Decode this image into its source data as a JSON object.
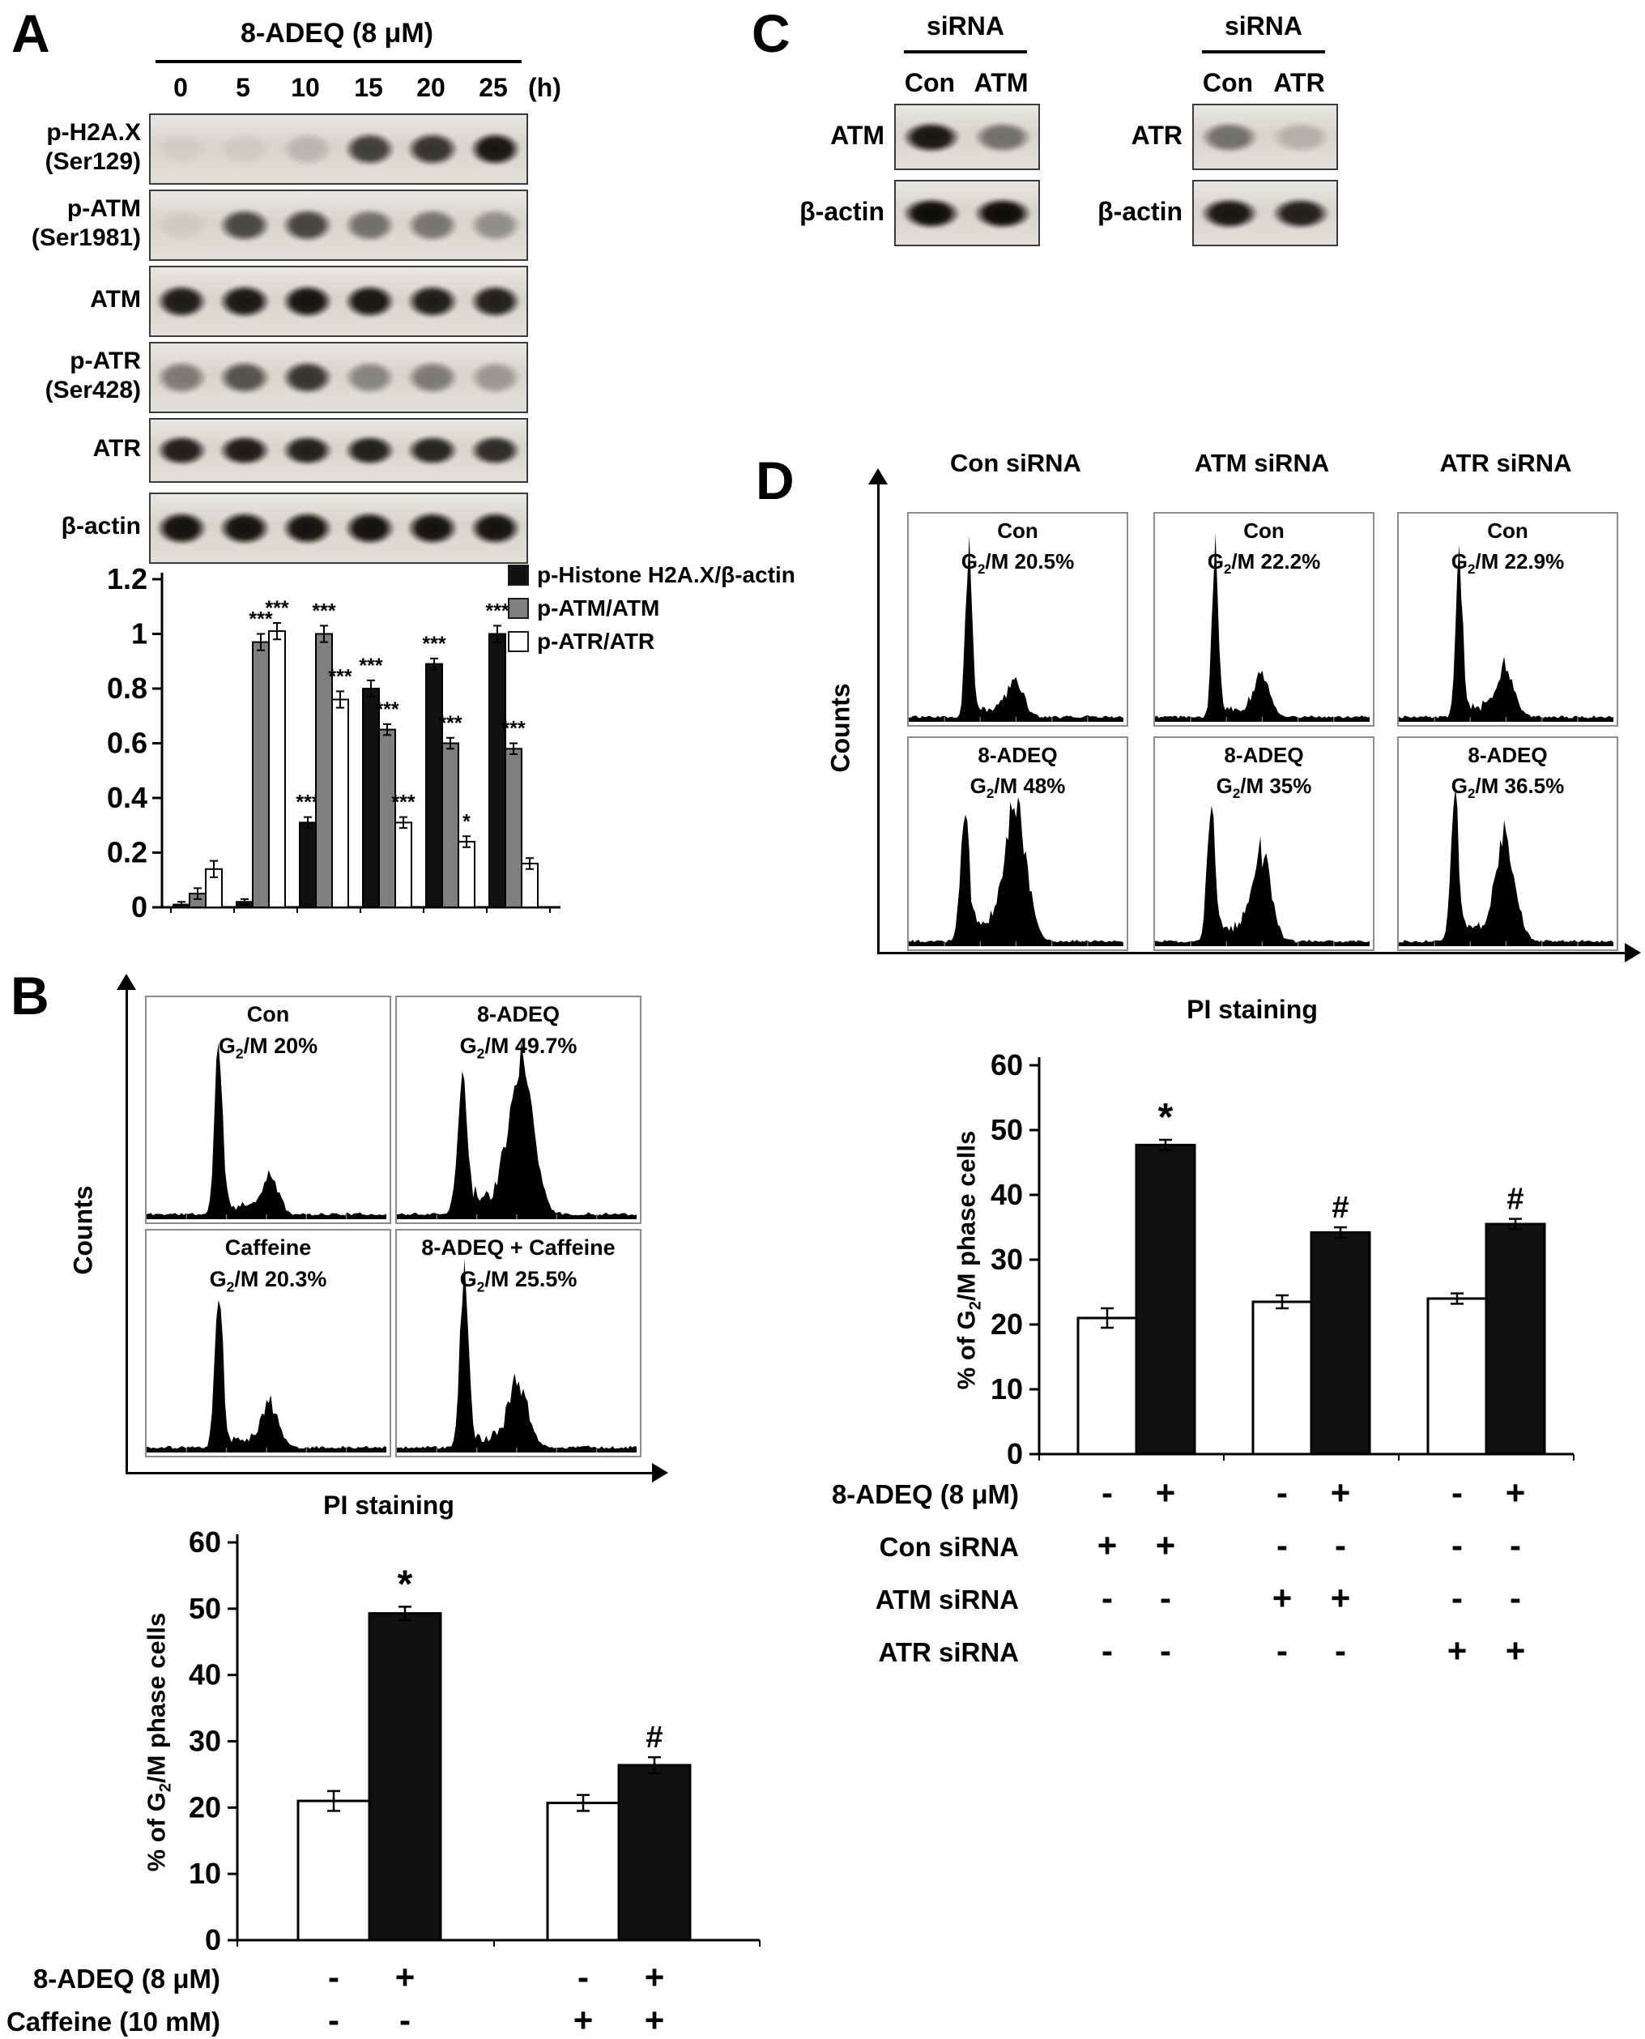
{
  "panelA": {
    "label": "A",
    "treatment": "8-ADEQ (8 μM)",
    "time_unit": "(h)",
    "time_points": [
      "0",
      "5",
      "10",
      "15",
      "20",
      "25"
    ],
    "blots": [
      {
        "label_lines": [
          "p-H2A.X",
          "(Ser129)"
        ],
        "bands": [
          0.04,
          0.05,
          0.15,
          0.75,
          0.8,
          0.95
        ]
      },
      {
        "label_lines": [
          "p-ATM",
          "(Ser1981)"
        ],
        "bands": [
          0.05,
          0.7,
          0.72,
          0.5,
          0.48,
          0.35
        ]
      },
      {
        "label_lines": [
          "ATM"
        ],
        "bands": [
          0.92,
          0.94,
          0.96,
          0.95,
          0.92,
          0.9
        ]
      },
      {
        "label_lines": [
          "p-ATR",
          "(Ser428)"
        ],
        "bands": [
          0.45,
          0.65,
          0.8,
          0.4,
          0.45,
          0.3
        ]
      },
      {
        "label_lines": [
          "ATR"
        ],
        "bands": [
          0.9,
          0.92,
          0.9,
          0.9,
          0.88,
          0.84
        ]
      },
      {
        "label_lines": [
          "β-actin"
        ],
        "bands": [
          0.97,
          0.97,
          0.97,
          0.97,
          0.97,
          0.97
        ]
      }
    ]
  },
  "panelB": {
    "label": "B",
    "y_axis": "Counts",
    "x_axis": "PI staining",
    "plots": [
      {
        "title": "Con",
        "g2m": "G2/M 20%",
        "profile": {
          "peaks": [
            [
              0.3,
              0.96,
              0.016
            ],
            [
              0.52,
              0.2,
              0.032
            ]
          ],
          "plateau": 0.045
        }
      },
      {
        "title": "8-ADEQ",
        "g2m": "G2/M 49.7%",
        "profile": {
          "peaks": [
            [
              0.27,
              0.66,
              0.02
            ],
            [
              0.52,
              0.8,
              0.05
            ]
          ],
          "plateau": 0.1
        }
      },
      {
        "title": "Caffeine",
        "g2m": "G2/M 20.3%",
        "profile": {
          "peaks": [
            [
              0.3,
              0.95,
              0.016
            ],
            [
              0.52,
              0.22,
              0.034
            ]
          ],
          "plateau": 0.05
        }
      },
      {
        "title": "8-ADEQ + Caffeine",
        "g2m": "G2/M 25.5%",
        "profile": {
          "peaks": [
            [
              0.28,
              0.97,
              0.017
            ],
            [
              0.51,
              0.34,
              0.04
            ]
          ],
          "plateau": 0.06
        }
      }
    ]
  },
  "panelC": {
    "label": "C",
    "groups": [
      {
        "header": "siRNA",
        "lanes": [
          "Con",
          "ATM"
        ],
        "rows": [
          {
            "label": "ATM",
            "bands": [
              0.95,
              0.5
            ]
          },
          {
            "label": "β-actin",
            "bands": [
              1,
              1
            ]
          }
        ]
      },
      {
        "header": "siRNA",
        "lanes": [
          "Con",
          "ATR"
        ],
        "rows": [
          {
            "label": "ATR",
            "bands": [
              0.5,
              0.18
            ]
          },
          {
            "label": "β-actin",
            "bands": [
              0.95,
              0.9
            ]
          }
        ]
      }
    ]
  },
  "panelD": {
    "label": "D",
    "col_headers": [
      "Con siRNA",
      "ATM siRNA",
      "ATR siRNA"
    ],
    "y_axis": "Counts",
    "x_axis": "PI staining",
    "plots": [
      [
        {
          "title": "Con",
          "g2m": "G2/M 20.5%",
          "profile": {
            "peaks": [
              [
                0.28,
                0.95,
                0.016
              ],
              [
                0.5,
                0.22,
                0.035
              ]
            ],
            "plateau": 0.05
          }
        },
        {
          "title": "Con",
          "g2m": "G2/M 22.2%",
          "profile": {
            "peaks": [
              [
                0.28,
                0.96,
                0.015
              ],
              [
                0.5,
                0.24,
                0.035
              ]
            ],
            "plateau": 0.05
          }
        },
        {
          "title": "Con",
          "g2m": "G2/M 22.9%",
          "profile": {
            "peaks": [
              [
                0.28,
                0.94,
                0.016
              ],
              [
                0.5,
                0.26,
                0.04
              ]
            ],
            "plateau": 0.06
          }
        }
      ],
      [
        {
          "title": "8-ADEQ",
          "g2m": "G2/M 48%",
          "profile": {
            "peaks": [
              [
                0.26,
                0.7,
                0.02
              ],
              [
                0.5,
                0.78,
                0.05
              ]
            ],
            "plateau": 0.1
          }
        },
        {
          "title": "8-ADEQ",
          "g2m": "G2/M 35%",
          "profile": {
            "peaks": [
              [
                0.26,
                0.82,
                0.018
              ],
              [
                0.5,
                0.52,
                0.042
              ]
            ],
            "plateau": 0.08
          }
        },
        {
          "title": "8-ADEQ",
          "g2m": "G2/M 36.5%",
          "profile": {
            "peaks": [
              [
                0.26,
                0.78,
                0.018
              ],
              [
                0.5,
                0.58,
                0.045
              ]
            ],
            "plateau": 0.08
          }
        }
      ]
    ]
  },
  "chart_data": [
    {
      "id": "densitometry",
      "panel": "A",
      "type": "bar",
      "categories": [
        "0",
        "5",
        "10",
        "15",
        "20",
        "25"
      ],
      "xlabel": "time (h)",
      "series": [
        {
          "name": "p-Histone H2A.X/β-actin",
          "color": "#111111",
          "values": [
            0.01,
            0.02,
            0.31,
            0.8,
            0.89,
            1.0
          ],
          "errors": [
            0.01,
            0.01,
            0.02,
            0.03,
            0.02,
            0.03
          ],
          "sig": [
            "",
            "",
            "***",
            "***",
            "***",
            "***"
          ]
        },
        {
          "name": "p-ATM/ATM",
          "color": "#7f7f7f",
          "values": [
            0.05,
            0.97,
            1.0,
            0.65,
            0.6,
            0.58
          ],
          "errors": [
            0.02,
            0.03,
            0.03,
            0.02,
            0.02,
            0.02
          ],
          "sig": [
            "",
            "***",
            "***",
            "***",
            "***",
            "***"
          ]
        },
        {
          "name": "p-ATR/ATR",
          "color": "#ffffff",
          "values": [
            0.14,
            1.01,
            0.76,
            0.31,
            0.24,
            0.16
          ],
          "errors": [
            0.03,
            0.03,
            0.03,
            0.02,
            0.02,
            0.02
          ],
          "sig": [
            "",
            "***",
            "***",
            "***",
            "*",
            ""
          ]
        }
      ],
      "ylim": [
        0,
        1.2
      ],
      "yticks": [
        "0",
        "0.2",
        "0.4",
        "0.6",
        "0.8",
        "1",
        "1.2"
      ],
      "legend_position": "top-right",
      "grid": false
    },
    {
      "id": "g2m-caffeine",
      "panel": "B",
      "type": "bar",
      "ylabel": "% of G2/M phase cells",
      "ylim": [
        0,
        60
      ],
      "yticks": [
        "0",
        "10",
        "20",
        "30",
        "40",
        "50",
        "60"
      ],
      "values": [
        21,
        49.3,
        20.7,
        26.4
      ],
      "errors": [
        1.5,
        1,
        1.2,
        1.2
      ],
      "fills": [
        "#ffffff",
        "#111111",
        "#ffffff",
        "#111111"
      ],
      "sig": [
        "",
        "*",
        "",
        "#"
      ],
      "conditions": [
        {
          "label": "8-ADEQ (8 μM)",
          "signs": [
            "-",
            "+",
            "-",
            "+"
          ]
        },
        {
          "label": "Caffeine (10 mM)",
          "signs": [
            "-",
            "-",
            "+",
            "+"
          ]
        }
      ],
      "grid": false
    },
    {
      "id": "g2m-sirna",
      "panel": "D",
      "type": "bar",
      "ylabel": "% of G2/M phase cells",
      "ylim": [
        0,
        60
      ],
      "yticks": [
        "0",
        "10",
        "20",
        "30",
        "40",
        "50",
        "60"
      ],
      "values": [
        21,
        47.7,
        23.5,
        34.2,
        24,
        35.5
      ],
      "errors": [
        1.5,
        0.8,
        1,
        0.8,
        0.8,
        0.8
      ],
      "fills": [
        "#ffffff",
        "#111111",
        "#ffffff",
        "#111111",
        "#ffffff",
        "#111111"
      ],
      "sig": [
        "",
        "*",
        "",
        "#",
        "",
        "#"
      ],
      "conditions": [
        {
          "label": "8-ADEQ (8 μM)",
          "signs": [
            "-",
            "+",
            "-",
            "+",
            "-",
            "+"
          ]
        },
        {
          "label": "Con siRNA",
          "signs": [
            "+",
            "+",
            "-",
            "-",
            "-",
            "-"
          ]
        },
        {
          "label": "ATM siRNA",
          "signs": [
            "-",
            "-",
            "+",
            "+",
            "-",
            "-"
          ]
        },
        {
          "label": "ATR siRNA",
          "signs": [
            "-",
            "-",
            "-",
            "-",
            "+",
            "+"
          ]
        }
      ],
      "grid": false
    }
  ]
}
